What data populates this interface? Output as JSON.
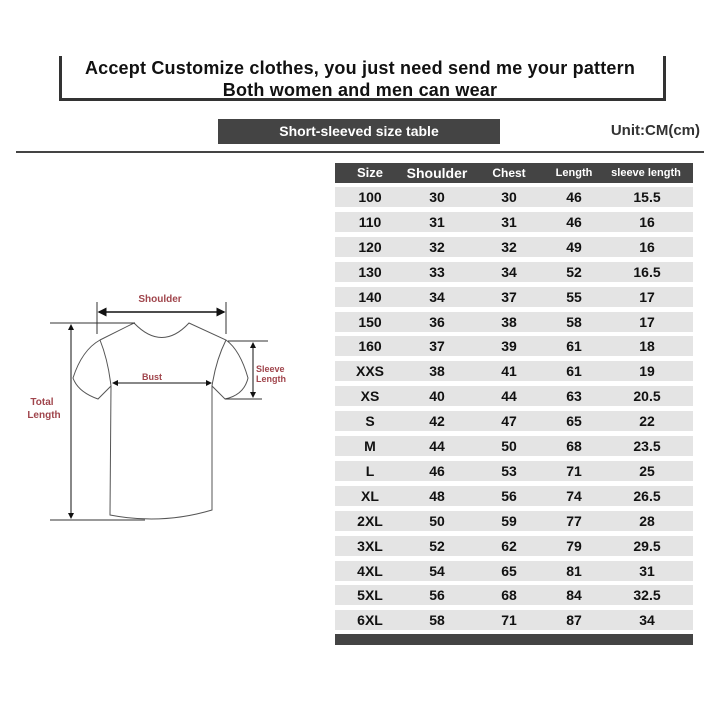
{
  "banner": {
    "line1": "Accept Customize clothes, you just need send me your pattern",
    "line2": "Both women and men can wear"
  },
  "table_title": "Short-sleeved size  table",
  "unit": "Unit:CM(cm)",
  "diagram": {
    "shoulder": "Shoulder",
    "bust": "Bust",
    "sleeve_line1": "Sleeve",
    "sleeve_line2": "Length",
    "total_line1": "Total",
    "total_line2": "Length",
    "label_color": "#a0454c"
  },
  "headers": [
    "Size",
    "Shoulder",
    "Chest",
    "Length",
    "sleeve length"
  ],
  "rows": [
    [
      "100",
      "30",
      "30",
      "46",
      "15.5"
    ],
    [
      "110",
      "31",
      "31",
      "46",
      "16"
    ],
    [
      "120",
      "32",
      "32",
      "49",
      "16"
    ],
    [
      "130",
      "33",
      "34",
      "52",
      "16.5"
    ],
    [
      "140",
      "34",
      "37",
      "55",
      "17"
    ],
    [
      "150",
      "36",
      "38",
      "58",
      "17"
    ],
    [
      "160",
      "37",
      "39",
      "61",
      "18"
    ],
    [
      "XXS",
      "38",
      "41",
      "61",
      "19"
    ],
    [
      "XS",
      "40",
      "44",
      "63",
      "20.5"
    ],
    [
      "S",
      "42",
      "47",
      "65",
      "22"
    ],
    [
      "M",
      "44",
      "50",
      "68",
      "23.5"
    ],
    [
      "L",
      "46",
      "53",
      "71",
      "25"
    ],
    [
      "XL",
      "48",
      "56",
      "74",
      "26.5"
    ],
    [
      "2XL",
      "50",
      "59",
      "77",
      "28"
    ],
    [
      "3XL",
      "52",
      "62",
      "79",
      "29.5"
    ],
    [
      "4XL",
      "54",
      "65",
      "81",
      "31"
    ],
    [
      "5XL",
      "56",
      "68",
      "84",
      "32.5"
    ],
    [
      "6XL",
      "58",
      "71",
      "87",
      "34"
    ]
  ]
}
